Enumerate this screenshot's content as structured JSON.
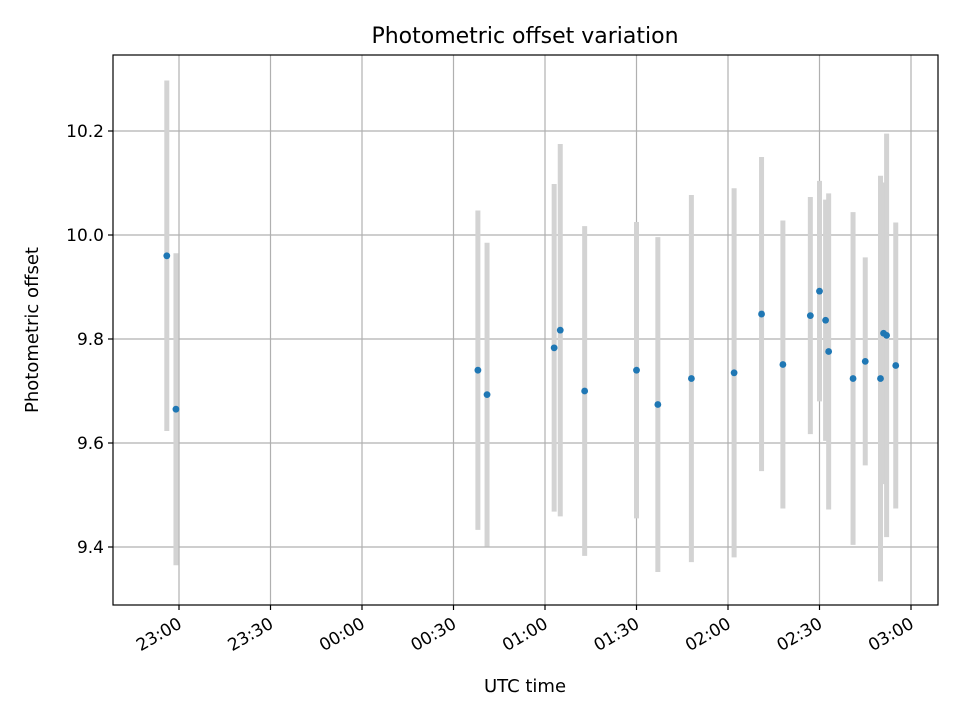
{
  "chart_data": {
    "type": "scatter",
    "title": "Photometric offset variation",
    "xlabel": "UTC time",
    "ylabel": "Photometric offset",
    "grid": true,
    "xlim": [
      "22:45",
      "03:00"
    ],
    "ylim": [
      9.29,
      10.35
    ],
    "x_ticks": [
      "23:00",
      "23:30",
      "00:00",
      "00:30",
      "01:00",
      "01:30",
      "02:00",
      "02:30",
      "03:00"
    ],
    "y_ticks": [
      "9.4",
      "9.6",
      "9.8",
      "10.0",
      "10.2"
    ],
    "series": [
      {
        "marker_color": "#1f77b4",
        "errorbar_color": "#d3d3d3",
        "points": [
          {
            "t": "22:56",
            "y": 9.96,
            "err": 0.337
          },
          {
            "t": "22:59",
            "y": 9.665,
            "err": 0.3
          },
          {
            "t": "00:38",
            "y": 9.74,
            "err": 0.307
          },
          {
            "t": "00:41",
            "y": 9.693,
            "err": 0.292
          },
          {
            "t": "01:03",
            "y": 9.783,
            "err": 0.315
          },
          {
            "t": "01:05",
            "y": 9.817,
            "err": 0.358
          },
          {
            "t": "01:13",
            "y": 9.7,
            "err": 0.317
          },
          {
            "t": "01:30",
            "y": 9.74,
            "err": 0.285
          },
          {
            "t": "01:37",
            "y": 9.674,
            "err": 0.322
          },
          {
            "t": "01:48",
            "y": 9.724,
            "err": 0.353
          },
          {
            "t": "02:02",
            "y": 9.735,
            "err": 0.355
          },
          {
            "t": "02:11",
            "y": 9.848,
            "err": 0.302
          },
          {
            "t": "02:18",
            "y": 9.751,
            "err": 0.277
          },
          {
            "t": "02:27",
            "y": 9.845,
            "err": 0.228
          },
          {
            "t": "02:30",
            "y": 9.892,
            "err": 0.212
          },
          {
            "t": "02:32",
            "y": 9.836,
            "err": 0.232
          },
          {
            "t": "02:33",
            "y": 9.776,
            "err": 0.304
          },
          {
            "t": "02:41",
            "y": 9.724,
            "err": 0.32
          },
          {
            "t": "02:45",
            "y": 9.757,
            "err": 0.2
          },
          {
            "t": "02:50",
            "y": 9.724,
            "err": 0.39
          },
          {
            "t": "02:51",
            "y": 9.811,
            "err": 0.29
          },
          {
            "t": "02:52",
            "y": 9.807,
            "err": 0.388
          },
          {
            "t": "02:55",
            "y": 9.749,
            "err": 0.275
          }
        ]
      }
    ]
  }
}
